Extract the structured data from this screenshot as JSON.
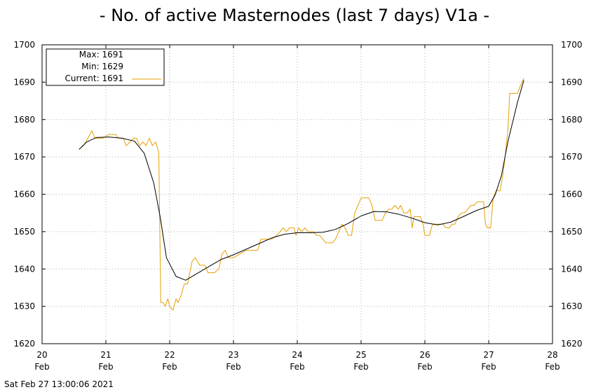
{
  "chart_data": {
    "type": "line",
    "title": "- No. of active Masternodes (last 7 days) V1a -",
    "timestamp": "Sat Feb 27 13:00:06 2021",
    "xlabel": "",
    "ylabel": "",
    "xlim": [
      20,
      28
    ],
    "ylim": [
      1620,
      1700
    ],
    "grid": true,
    "y_ticks": [
      1620,
      1630,
      1640,
      1650,
      1660,
      1670,
      1680,
      1690,
      1700
    ],
    "x_ticks": [
      {
        "day": "20",
        "month": "Feb"
      },
      {
        "day": "21",
        "month": "Feb"
      },
      {
        "day": "22",
        "month": "Feb"
      },
      {
        "day": "23",
        "month": "Feb"
      },
      {
        "day": "24",
        "month": "Feb"
      },
      {
        "day": "25",
        "month": "Feb"
      },
      {
        "day": "26",
        "month": "Feb"
      },
      {
        "day": "27",
        "month": "Feb"
      },
      {
        "day": "28",
        "month": "Feb"
      }
    ],
    "legend": {
      "position": "top-left",
      "max": "Max: 1691",
      "min": "Min: 1629",
      "current": "Current: 1691"
    },
    "series": [
      {
        "role": "raw",
        "color": "#e69f00",
        "points": [
          [
            20.58,
            1672
          ],
          [
            20.65,
            1673
          ],
          [
            20.72,
            1675
          ],
          [
            20.78,
            1677
          ],
          [
            20.83,
            1675
          ],
          [
            20.88,
            1675
          ],
          [
            20.95,
            1675
          ],
          [
            21.05,
            1676
          ],
          [
            21.15,
            1676
          ],
          [
            21.2,
            1675
          ],
          [
            21.27,
            1675
          ],
          [
            21.32,
            1673
          ],
          [
            21.38,
            1674
          ],
          [
            21.43,
            1675
          ],
          [
            21.48,
            1675
          ],
          [
            21.53,
            1673
          ],
          [
            21.58,
            1674
          ],
          [
            21.63,
            1673
          ],
          [
            21.68,
            1675
          ],
          [
            21.73,
            1673
          ],
          [
            21.78,
            1674
          ],
          [
            21.83,
            1671
          ],
          [
            21.86,
            1631
          ],
          [
            21.9,
            1631
          ],
          [
            21.93,
            1630
          ],
          [
            21.97,
            1632
          ],
          [
            22.0,
            1630
          ],
          [
            22.05,
            1629
          ],
          [
            22.1,
            1632
          ],
          [
            22.13,
            1631
          ],
          [
            22.18,
            1633
          ],
          [
            22.23,
            1636
          ],
          [
            22.28,
            1636
          ],
          [
            22.35,
            1642
          ],
          [
            22.4,
            1643
          ],
          [
            22.47,
            1641
          ],
          [
            22.55,
            1641
          ],
          [
            22.6,
            1639
          ],
          [
            22.7,
            1639
          ],
          [
            22.77,
            1640
          ],
          [
            22.82,
            1644
          ],
          [
            22.87,
            1645
          ],
          [
            22.92,
            1643
          ],
          [
            23.0,
            1643
          ],
          [
            23.1,
            1644
          ],
          [
            23.2,
            1645
          ],
          [
            23.3,
            1645
          ],
          [
            23.38,
            1645
          ],
          [
            23.43,
            1648
          ],
          [
            23.5,
            1648
          ],
          [
            23.6,
            1648
          ],
          [
            23.68,
            1649
          ],
          [
            23.73,
            1650
          ],
          [
            23.78,
            1651
          ],
          [
            23.83,
            1650
          ],
          [
            23.88,
            1651
          ],
          [
            23.95,
            1651
          ],
          [
            23.98,
            1649
          ],
          [
            24.02,
            1651
          ],
          [
            24.07,
            1650
          ],
          [
            24.12,
            1651
          ],
          [
            24.17,
            1650
          ],
          [
            24.25,
            1650
          ],
          [
            24.3,
            1649
          ],
          [
            24.35,
            1649
          ],
          [
            24.4,
            1648
          ],
          [
            24.45,
            1647
          ],
          [
            24.55,
            1647
          ],
          [
            24.6,
            1648
          ],
          [
            24.65,
            1650
          ],
          [
            24.7,
            1652
          ],
          [
            24.75,
            1651
          ],
          [
            24.8,
            1649
          ],
          [
            24.85,
            1649
          ],
          [
            24.9,
            1655
          ],
          [
            24.95,
            1657
          ],
          [
            25.0,
            1659
          ],
          [
            25.05,
            1659
          ],
          [
            25.12,
            1659
          ],
          [
            25.17,
            1657
          ],
          [
            25.22,
            1653
          ],
          [
            25.28,
            1653
          ],
          [
            25.33,
            1653
          ],
          [
            25.38,
            1655
          ],
          [
            25.43,
            1656
          ],
          [
            25.48,
            1656
          ],
          [
            25.53,
            1657
          ],
          [
            25.58,
            1656
          ],
          [
            25.62,
            1657
          ],
          [
            25.67,
            1655
          ],
          [
            25.72,
            1655
          ],
          [
            25.77,
            1656
          ],
          [
            25.8,
            1651
          ],
          [
            25.83,
            1654
          ],
          [
            25.88,
            1654
          ],
          [
            25.93,
            1654
          ],
          [
            25.97,
            1652
          ],
          [
            26.0,
            1649
          ],
          [
            26.07,
            1649
          ],
          [
            26.12,
            1652
          ],
          [
            26.17,
            1652
          ],
          [
            26.22,
            1652
          ],
          [
            26.28,
            1652
          ],
          [
            26.33,
            1651
          ],
          [
            26.38,
            1651
          ],
          [
            26.43,
            1652
          ],
          [
            26.47,
            1652
          ],
          [
            26.52,
            1654
          ],
          [
            26.57,
            1655
          ],
          [
            26.62,
            1655
          ],
          [
            26.67,
            1656
          ],
          [
            26.72,
            1657
          ],
          [
            26.77,
            1657
          ],
          [
            26.82,
            1658
          ],
          [
            26.87,
            1658
          ],
          [
            26.92,
            1658
          ],
          [
            26.95,
            1652
          ],
          [
            26.98,
            1651
          ],
          [
            27.03,
            1651
          ],
          [
            27.07,
            1659
          ],
          [
            27.12,
            1661
          ],
          [
            27.18,
            1661
          ],
          [
            27.22,
            1665
          ],
          [
            27.25,
            1669
          ],
          [
            27.3,
            1677
          ],
          [
            27.33,
            1687
          ],
          [
            27.4,
            1687
          ],
          [
            27.45,
            1687
          ],
          [
            27.52,
            1690
          ],
          [
            27.55,
            1691
          ]
        ]
      },
      {
        "role": "smoothed",
        "color": "#000000",
        "points": [
          [
            20.58,
            1672
          ],
          [
            20.7,
            1674
          ],
          [
            20.85,
            1675.2
          ],
          [
            21.05,
            1675.3
          ],
          [
            21.25,
            1675
          ],
          [
            21.45,
            1674.2
          ],
          [
            21.6,
            1671
          ],
          [
            21.75,
            1663
          ],
          [
            21.85,
            1654
          ],
          [
            21.95,
            1643
          ],
          [
            22.1,
            1638
          ],
          [
            22.25,
            1637
          ],
          [
            22.4,
            1638.5
          ],
          [
            22.6,
            1640.5
          ],
          [
            22.8,
            1642.5
          ],
          [
            23.0,
            1643.8
          ],
          [
            23.2,
            1645.3
          ],
          [
            23.4,
            1646.8
          ],
          [
            23.6,
            1648.3
          ],
          [
            23.8,
            1649.3
          ],
          [
            24.0,
            1649.7
          ],
          [
            24.2,
            1649.7
          ],
          [
            24.4,
            1649.8
          ],
          [
            24.6,
            1650.6
          ],
          [
            24.8,
            1652.2
          ],
          [
            25.0,
            1654.2
          ],
          [
            25.2,
            1655.4
          ],
          [
            25.4,
            1655.3
          ],
          [
            25.6,
            1654.6
          ],
          [
            25.8,
            1653.6
          ],
          [
            26.0,
            1652.4
          ],
          [
            26.2,
            1651.8
          ],
          [
            26.4,
            1652.5
          ],
          [
            26.6,
            1654
          ],
          [
            26.8,
            1655.6
          ],
          [
            27.0,
            1656.8
          ],
          [
            27.1,
            1659.8
          ],
          [
            27.2,
            1665
          ],
          [
            27.3,
            1674
          ],
          [
            27.45,
            1684.5
          ],
          [
            27.55,
            1690.5
          ]
        ]
      }
    ]
  }
}
